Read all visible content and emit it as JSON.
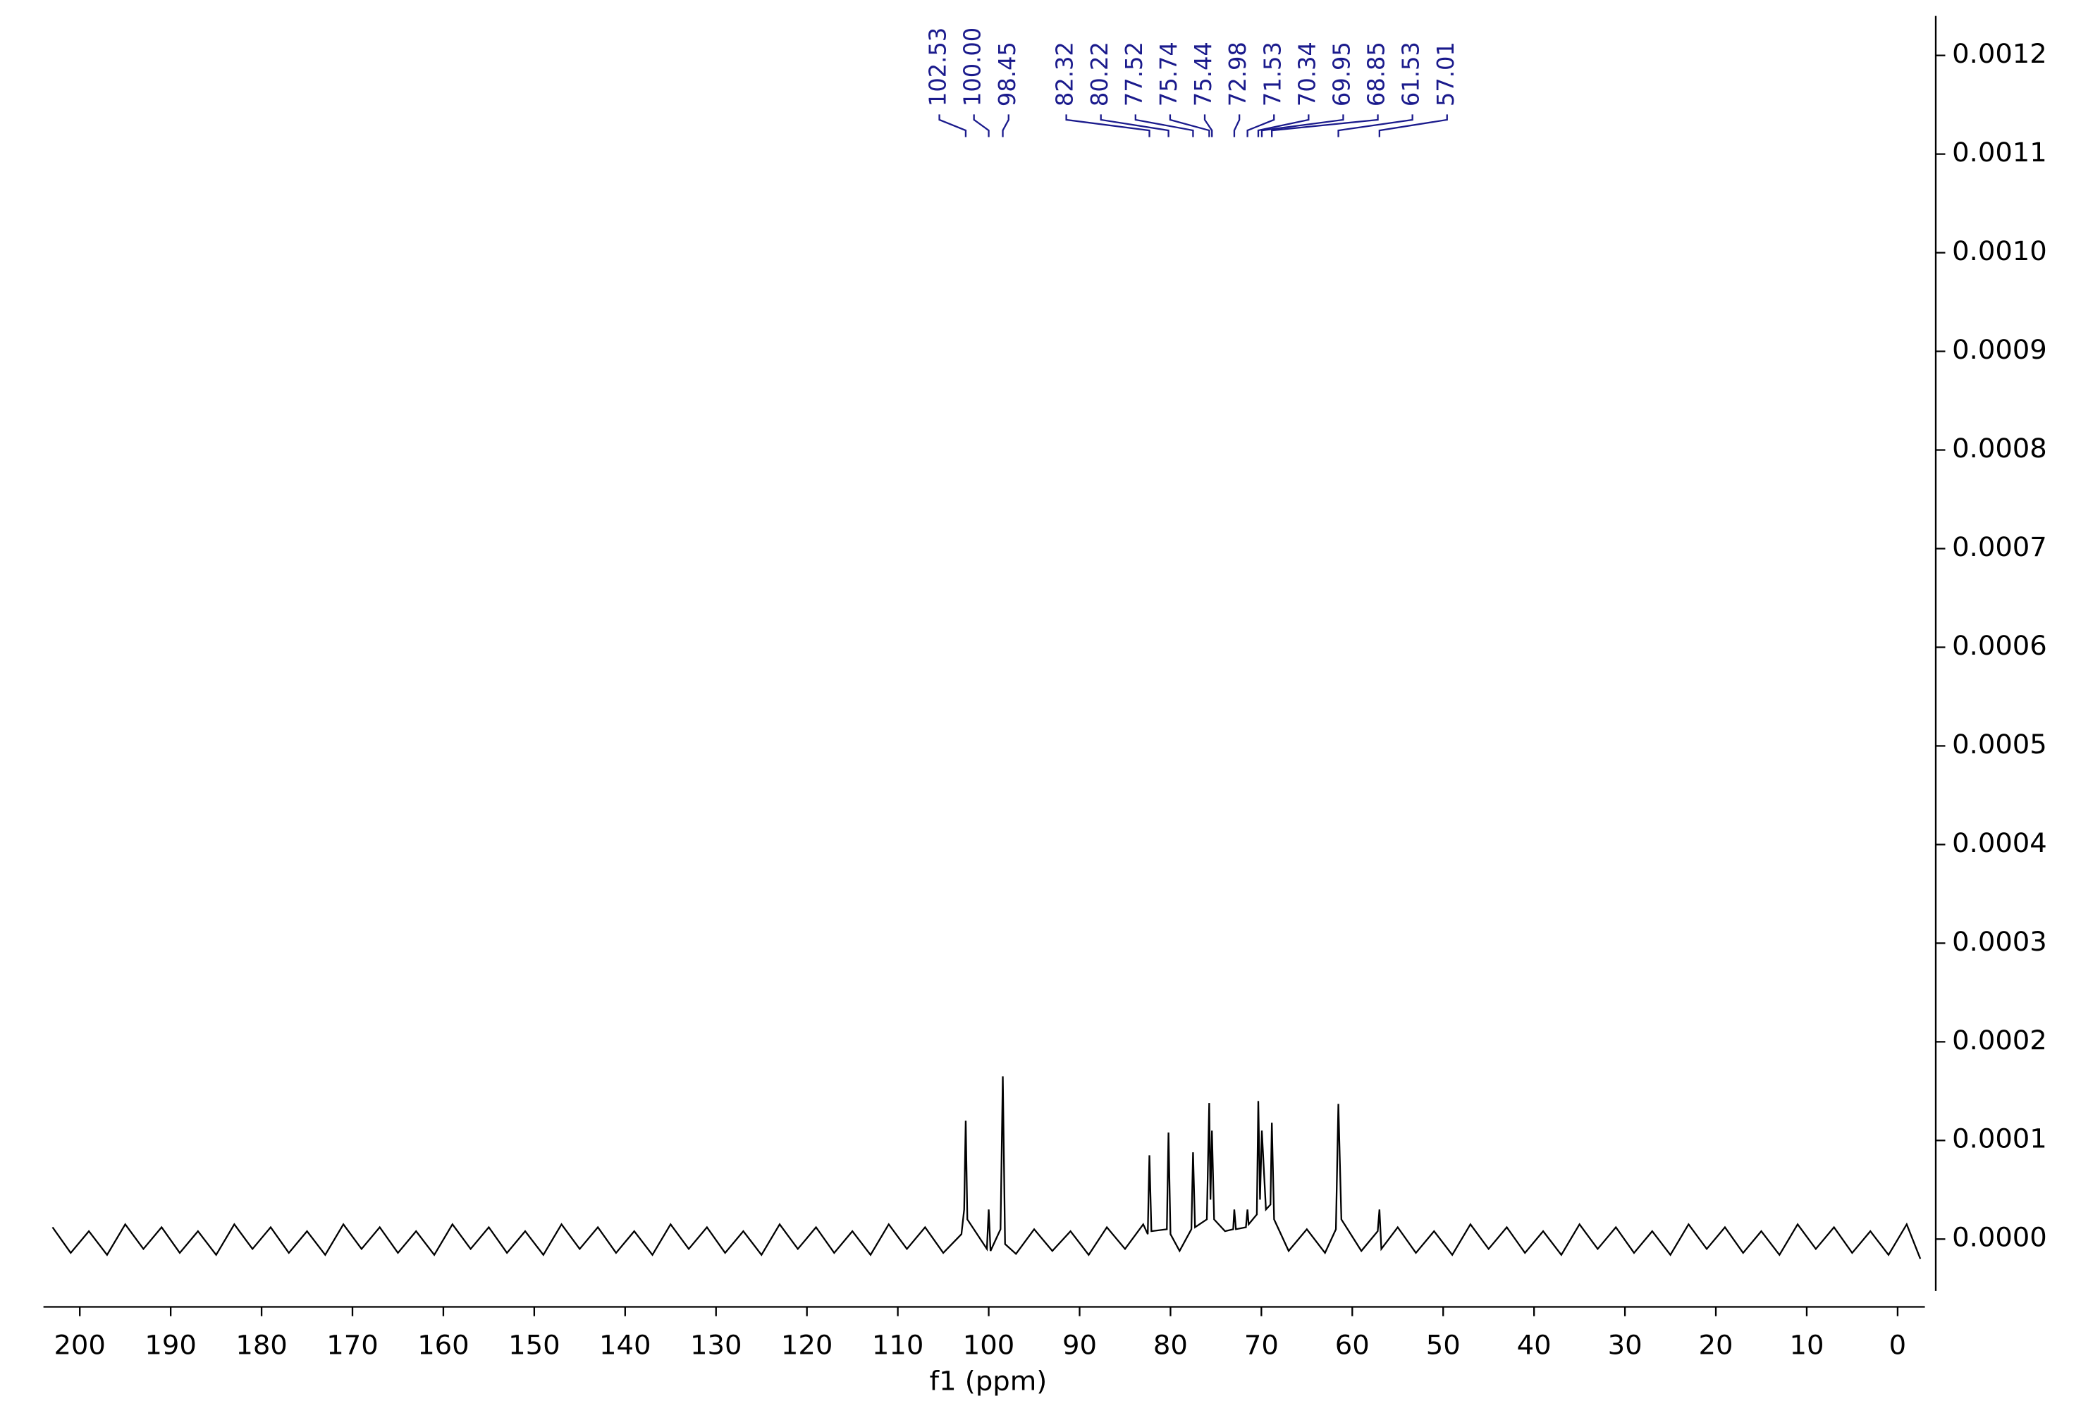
{
  "chart_data": {
    "type": "line",
    "xlabel": "f1 (ppm)",
    "color": "#000000",
    "label_color": "#1a1a8c",
    "xlim": [
      204,
      -3
    ],
    "xticks": [
      200,
      190,
      180,
      170,
      160,
      150,
      140,
      130,
      120,
      110,
      100,
      90,
      80,
      70,
      60,
      50,
      40,
      30,
      20,
      10,
      0
    ],
    "ylim": [
      -6.6e-05,
      0.00124
    ],
    "yticks": [
      {
        "value": 0,
        "label": "0.0000"
      },
      {
        "value": 0.0001,
        "label": "0.0001"
      },
      {
        "value": 0.0002,
        "label": "0.0002"
      },
      {
        "value": 0.0003,
        "label": "0.0003"
      },
      {
        "value": 0.0004,
        "label": "0.0004"
      },
      {
        "value": 0.0005,
        "label": "0.0005"
      },
      {
        "value": 0.0006,
        "label": "0.0006"
      },
      {
        "value": 0.0007,
        "label": "0.0007"
      },
      {
        "value": 0.0008,
        "label": "0.0008"
      },
      {
        "value": 0.0009,
        "label": "0.0009"
      },
      {
        "value": 0.001,
        "label": "0.0010"
      },
      {
        "value": 0.0011,
        "label": "0.0011"
      },
      {
        "value": 0.0012,
        "label": "0.0012"
      }
    ],
    "peak_labels": [
      102.53,
      {
        "value": 100,
        "label": "100.00"
      },
      98.45,
      82.32,
      80.22,
      77.52,
      75.74,
      75.44,
      72.98,
      71.53,
      70.34,
      69.95,
      68.85,
      61.53,
      57.01
    ],
    "x": [
      203,
      201,
      199,
      197,
      195,
      193,
      191,
      189,
      187,
      185,
      183,
      181,
      179,
      177,
      175,
      173,
      171,
      169,
      167,
      165,
      163,
      161,
      159,
      157,
      155,
      153,
      151,
      149,
      147,
      145,
      143,
      141,
      139,
      137,
      135,
      133,
      131,
      129,
      127,
      125,
      123,
      121,
      119,
      117,
      115,
      113,
      111,
      109,
      107,
      105,
      103,
      102.7,
      102.53,
      102.35,
      100.2,
      100.0,
      99.8,
      98.7,
      98.45,
      98.2,
      97,
      95,
      93,
      91,
      89,
      87,
      85,
      83,
      82.5,
      82.32,
      82.1,
      80.4,
      80.22,
      80.0,
      79,
      77.7,
      77.52,
      77.3,
      76.0,
      75.74,
      75.6,
      75.44,
      75.2,
      74,
      73.1,
      72.98,
      72.8,
      71.7,
      71.53,
      71.4,
      70.5,
      70.34,
      70.15,
      69.95,
      69.5,
      69.0,
      68.85,
      68.6,
      67,
      65,
      63,
      61.8,
      61.53,
      61.2,
      59,
      57.2,
      57.01,
      56.8,
      55,
      53,
      51,
      49,
      47,
      45,
      43,
      41,
      39,
      37,
      35,
      33,
      31,
      29,
      27,
      25,
      23,
      21,
      19,
      17,
      15,
      13,
      11,
      9,
      7,
      5,
      3,
      1,
      -1,
      -2.5
    ],
    "values": [
      1.2e-05,
      -1.4e-05,
      8e-06,
      -1.6e-05,
      1.5e-05,
      -1e-05,
      1.2e-05,
      -1.4e-05,
      8e-06,
      -1.6e-05,
      1.5e-05,
      -1e-05,
      1.2e-05,
      -1.4e-05,
      8e-06,
      -1.6e-05,
      1.5e-05,
      -1e-05,
      1.2e-05,
      -1.4e-05,
      8e-06,
      -1.6e-05,
      1.5e-05,
      -1e-05,
      1.2e-05,
      -1.4e-05,
      8e-06,
      -1.6e-05,
      1.5e-05,
      -1e-05,
      1.2e-05,
      -1.4e-05,
      8e-06,
      -1.6e-05,
      1.5e-05,
      -1e-05,
      1.2e-05,
      -1.4e-05,
      8e-06,
      -1.6e-05,
      1.5e-05,
      -1e-05,
      1.2e-05,
      -1.4e-05,
      8e-06,
      -1.6e-05,
      1.5e-05,
      -1e-05,
      1.2e-05,
      -1.4e-05,
      5e-06,
      3e-05,
      0.00012,
      2e-05,
      -1e-05,
      3e-05,
      -1.2e-05,
      1e-05,
      0.000165,
      -5e-06,
      -1.5e-05,
      1e-05,
      -1.2e-05,
      8e-06,
      -1.6e-05,
      1.2e-05,
      -1e-05,
      1.5e-05,
      5e-06,
      8.5e-05,
      8e-06,
      1e-05,
      0.000108,
      5e-06,
      -1.2e-05,
      1e-05,
      8.8e-05,
      1.2e-05,
      2e-05,
      0.000138,
      4e-05,
      0.00011,
      2e-05,
      8e-06,
      1e-05,
      3e-05,
      1e-05,
      1.2e-05,
      3e-05,
      1.5e-05,
      2.5e-05,
      0.00014,
      4e-05,
      0.00011,
      3e-05,
      3.5e-05,
      0.000118,
      2e-05,
      -1.2e-05,
      1e-05,
      -1.4e-05,
      1e-05,
      0.000137,
      2e-05,
      -1.2e-05,
      8e-06,
      3e-05,
      -1e-05,
      1.2e-05,
      -1.4e-05,
      8e-06,
      -1.6e-05,
      1.5e-05,
      -1e-05,
      1.2e-05,
      -1.4e-05,
      8e-06,
      -1.6e-05,
      1.5e-05,
      -1e-05,
      1.2e-05,
      -1.4e-05,
      8e-06,
      -1.6e-05,
      1.5e-05,
      -1e-05,
      1.2e-05,
      -1.4e-05,
      8e-06,
      -1.6e-05,
      1.5e-05,
      -1e-05,
      1.2e-05,
      -1.4e-05,
      8e-06,
      -1.6e-05,
      1.5e-05,
      -2e-05
    ]
  }
}
